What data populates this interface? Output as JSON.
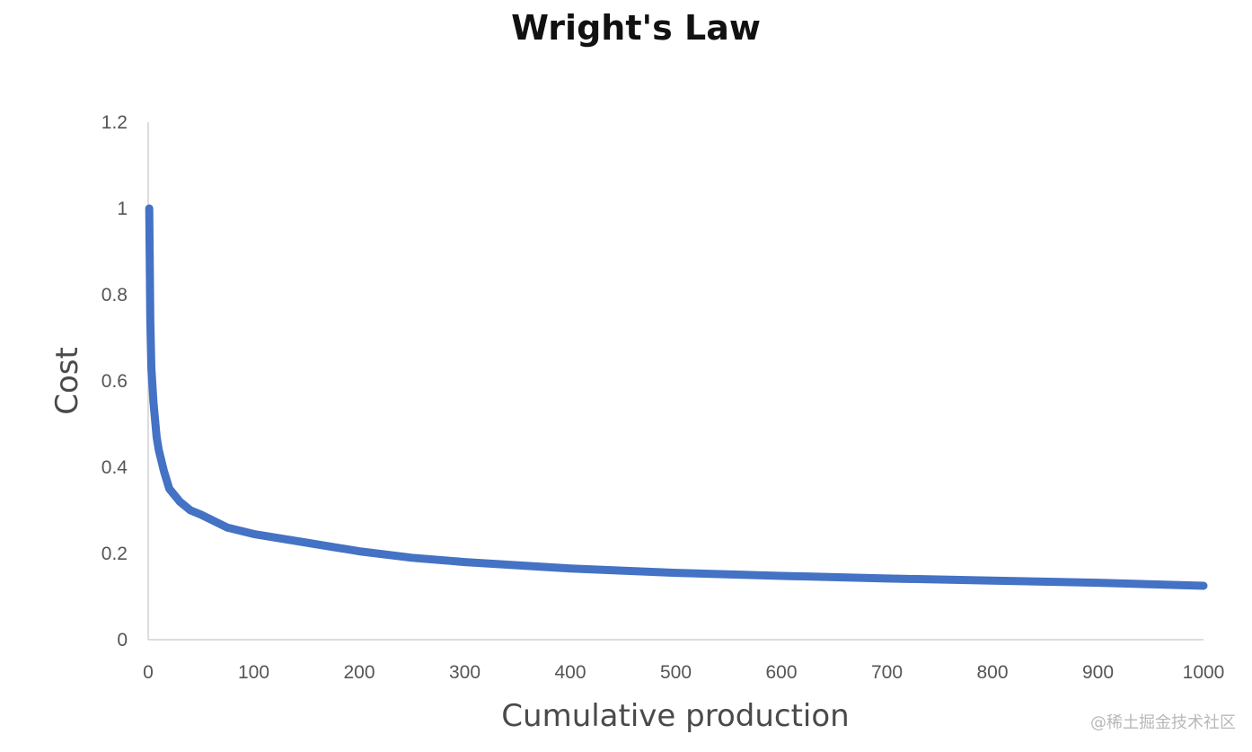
{
  "chart_data": {
    "type": "line",
    "title": "Wright's Law",
    "xlabel": "Cumulative production",
    "ylabel": "Cost",
    "xlim": [
      0,
      1000
    ],
    "ylim": [
      0,
      1.2
    ],
    "x_ticks": [
      "0",
      "100",
      "200",
      "300",
      "400",
      "500",
      "600",
      "700",
      "800",
      "900",
      "1000"
    ],
    "y_ticks": [
      "0",
      "0.2",
      "0.4",
      "0.6",
      "0.8",
      "1",
      "1.2"
    ],
    "grid": false,
    "legend": "none",
    "series": [
      {
        "color": "#4472c4",
        "x": [
          1,
          2,
          3,
          5,
          8,
          10,
          15,
          20,
          30,
          40,
          50,
          75,
          100,
          150,
          200,
          250,
          300,
          400,
          500,
          600,
          700,
          800,
          900,
          1000
        ],
        "y": [
          1.0,
          0.74,
          0.63,
          0.55,
          0.47,
          0.44,
          0.39,
          0.35,
          0.32,
          0.3,
          0.29,
          0.26,
          0.245,
          0.225,
          0.205,
          0.19,
          0.18,
          0.165,
          0.155,
          0.148,
          0.142,
          0.137,
          0.132,
          0.125
        ]
      }
    ]
  },
  "watermark": "@稀土掘金技术社区"
}
